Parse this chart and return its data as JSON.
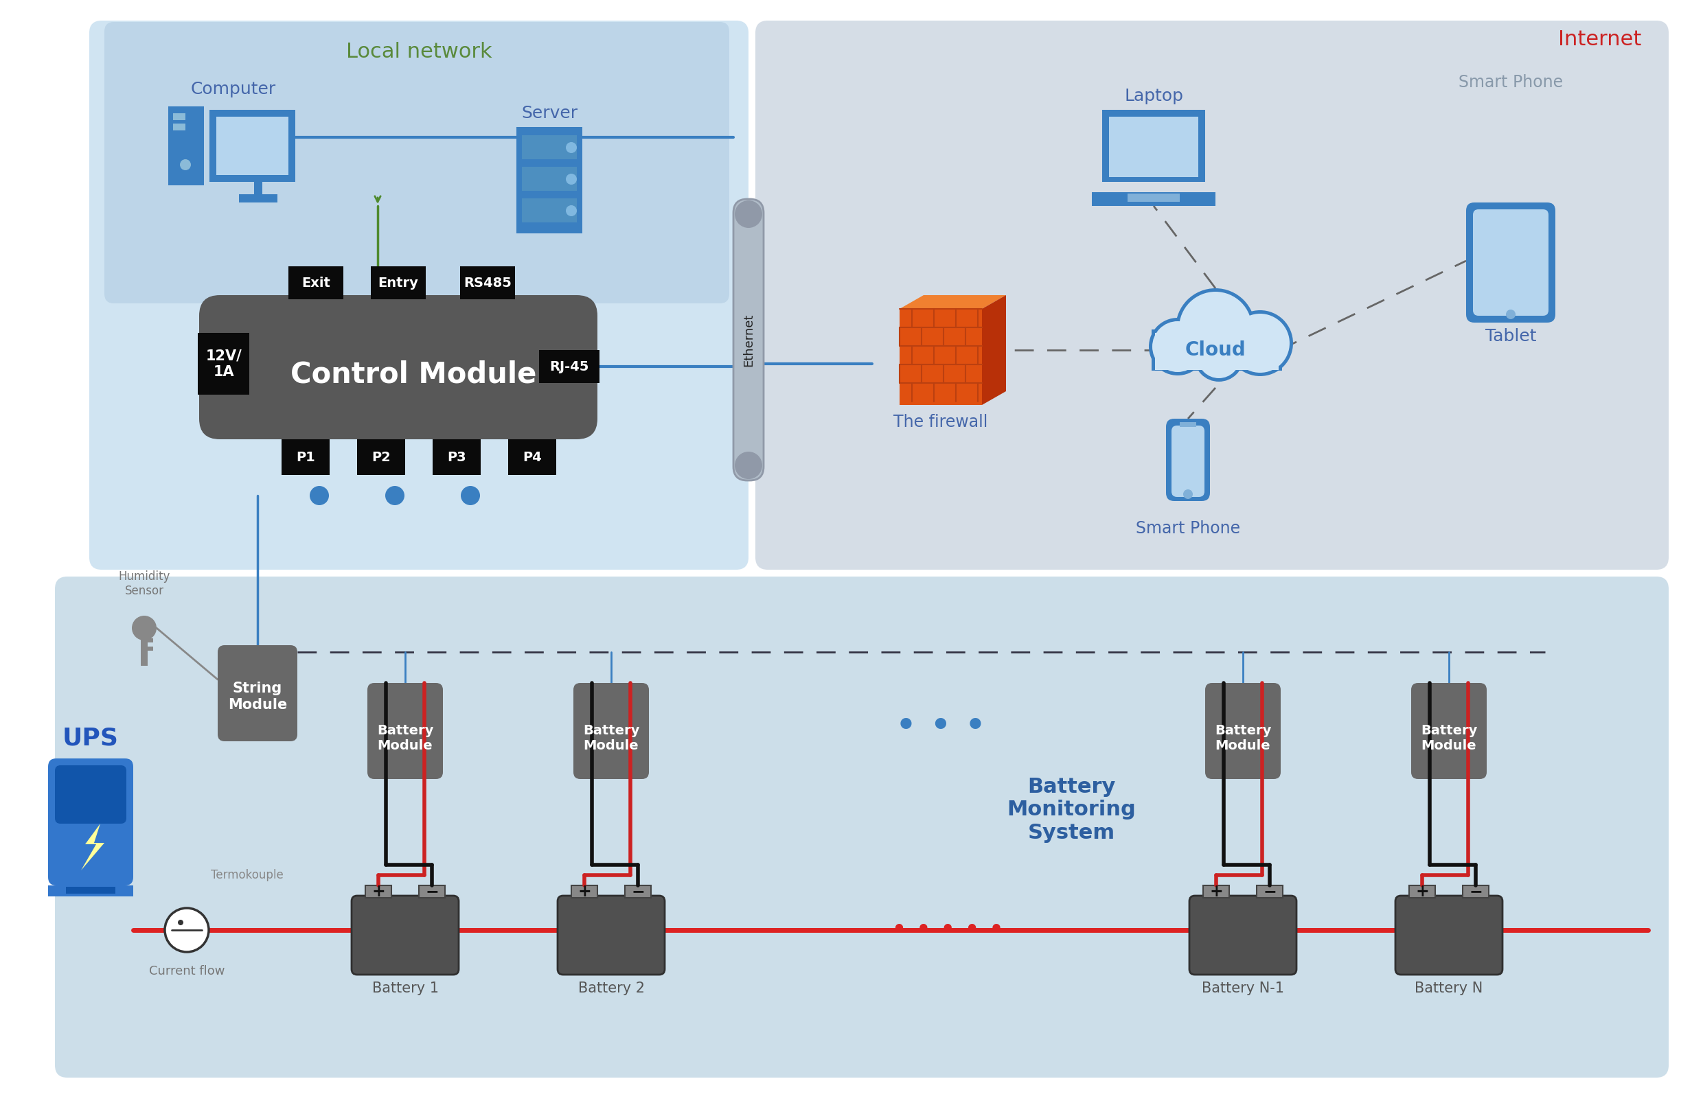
{
  "bg": "#ffffff",
  "panel_local_outer": "#d0e4f2",
  "panel_local_inner": "#c2d8eb",
  "panel_internet": "#d5dde6",
  "panel_battery": "#ccdee9",
  "col_icon": "#3a7fc1",
  "col_module": "#686868",
  "col_black": "#111111",
  "col_red": "#dd2222",
  "col_green": "#4f8a2e",
  "col_blue_line": "#3a7fc1",
  "col_dash": "#555555",
  "col_label": "#4466aa",
  "col_local_label": "#5a8a3c",
  "col_internet_label": "#cc2222",
  "col_gray_label": "#777777",
  "local_net_label": "Local network",
  "internet_label": "Internet",
  "computer_label": "Computer",
  "server_label": "Server",
  "laptop_label": "Laptop",
  "smartphone_label": "Smart Phone",
  "tablet_label": "Tablet",
  "cloud_label": "Cloud",
  "firewall_label": "The firewall",
  "ups_label": "UPS",
  "humidity_label": "Humidity\nSensor",
  "termokouple_label": "Termokouple",
  "current_flow_label": "Current flow",
  "string_module_label": "String\nModule",
  "battery_module_label": "Battery\nModule",
  "battery_monitoring_label": "Battery\nMonitoring\nSystem",
  "control_module_label": "Control Module",
  "rj45_label": "RJ-45",
  "ethernet_label": "Ethernet",
  "exit_label": "Exit",
  "entry_label": "Entry",
  "rs485_label": "RS485",
  "power_label": "12V/\n1A",
  "battery1_label": "Battery 1",
  "battery2_label": "Battery 2",
  "batteryN1_label": "Battery N-1",
  "batteryN_label": "Battery N",
  "p1": "P1",
  "p2": "P2",
  "p3": "P3",
  "p4": "P4"
}
